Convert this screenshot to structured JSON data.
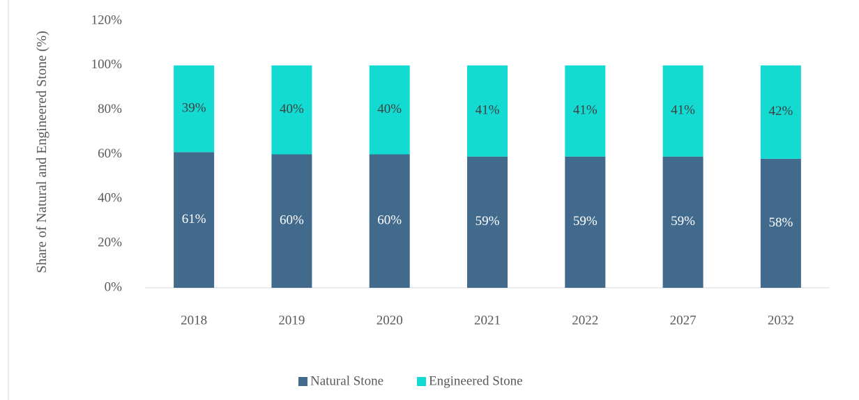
{
  "chart_data": {
    "type": "stacked_bar",
    "y_axis_label": "Share of Natural and Engineered Stone (%)",
    "categories": [
      "2018",
      "2019",
      "2020",
      "2021",
      "2022",
      "2027",
      "2032"
    ],
    "series": [
      {
        "name": "Natural Stone",
        "color": "#416a8c",
        "values": [
          61,
          60,
          60,
          59,
          59,
          59,
          58
        ],
        "value_labels": [
          "61%",
          "60%",
          "60%",
          "59%",
          "59%",
          "59%",
          "58%"
        ]
      },
      {
        "name": "Engineered Stone",
        "color": "#13dbd2",
        "values": [
          39,
          40,
          40,
          41,
          41,
          41,
          42
        ],
        "value_labels": [
          "39%",
          "40%",
          "40%",
          "41%",
          "41%",
          "41%",
          "42%"
        ]
      }
    ],
    "ylim": [
      0,
      120
    ],
    "yticks": [
      {
        "value": 0,
        "label": "0%"
      },
      {
        "value": 20,
        "label": "20%"
      },
      {
        "value": 40,
        "label": "40%"
      },
      {
        "value": 60,
        "label": "60%"
      },
      {
        "value": 80,
        "label": "80%"
      },
      {
        "value": 100,
        "label": "100%"
      },
      {
        "value": 120,
        "label": "120%"
      }
    ],
    "grid": false,
    "legend": "bottom"
  }
}
